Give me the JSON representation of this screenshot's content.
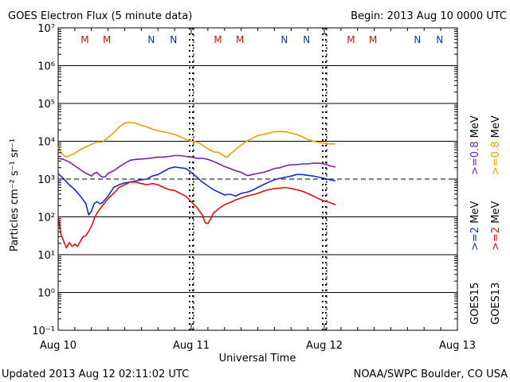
{
  "title": "GOES Electron Flux (5 minute data)",
  "begin": "Begin: 2013 Aug 10 0000 UTC",
  "updated": "Updated 2013 Aug 12 02:11:02 UTC",
  "credit": "NOAA/SWPC Boulder, CO USA",
  "colors": {
    "goes15_08": "#7a1fa8",
    "goes13_08": "#e8a000",
    "goes15_2": "#1030c0",
    "goes13_2": "#e01010",
    "mark_m": "#d01010",
    "mark_n": "#1030c0"
  },
  "chart_data": {
    "type": "line",
    "title": "GOES Electron Flux (5 minute data)",
    "xlabel": "Universal Time",
    "ylabel": "Particles cm⁻² s⁻¹ sr⁻¹",
    "x_unit": "hours since 2013 Aug 10 0000 UTC",
    "xlim": [
      0,
      72
    ],
    "ylim_log10": [
      -1,
      7
    ],
    "y_scale": "log",
    "x_ticks": [
      {
        "x": 0,
        "label": "Aug 10"
      },
      {
        "x": 24,
        "label": "Aug 11"
      },
      {
        "x": 48,
        "label": "Aug 12"
      },
      {
        "x": 72,
        "label": "Aug 13"
      }
    ],
    "y_ticks": [
      {
        "exp": 7,
        "label": "10⁷"
      },
      {
        "exp": 6,
        "label": "10⁶"
      },
      {
        "exp": 5,
        "label": "10⁵"
      },
      {
        "exp": 4,
        "label": "10⁴"
      },
      {
        "exp": 3,
        "label": "10³"
      },
      {
        "exp": 2,
        "label": "10²"
      },
      {
        "exp": 1,
        "label": "10¹"
      },
      {
        "exp": 0,
        "label": "10⁰"
      },
      {
        "exp": -1,
        "label": "10⁻¹"
      }
    ],
    "threshold_exp": 3,
    "midnight_markers_hours": [
      24,
      48
    ],
    "noon_markers_hours": [
      24,
      48
    ],
    "local_time_marks": [
      {
        "label": "M",
        "x": 4.8,
        "color_key": "mark_m"
      },
      {
        "label": "M",
        "x": 8.8,
        "color_key": "mark_m"
      },
      {
        "label": "N",
        "x": 16.8,
        "color_key": "mark_n"
      },
      {
        "label": "N",
        "x": 20.8,
        "color_key": "mark_n"
      },
      {
        "label": "M",
        "x": 28.8,
        "color_key": "mark_m"
      },
      {
        "label": "M",
        "x": 32.8,
        "color_key": "mark_m"
      },
      {
        "label": "N",
        "x": 40.8,
        "color_key": "mark_n"
      },
      {
        "label": "N",
        "x": 44.8,
        "color_key": "mark_n"
      },
      {
        "label": "M",
        "x": 52.8,
        "color_key": "mark_m"
      },
      {
        "label": "M",
        "x": 56.8,
        "color_key": "mark_m"
      },
      {
        "label": "N",
        "x": 64.8,
        "color_key": "mark_n"
      },
      {
        "label": "N",
        "x": 68.8,
        "color_key": "mark_n"
      }
    ],
    "legend": [
      {
        "label": "GOES15",
        "energy": ">=2",
        "unit": "MeV",
        "color_key": "goes15_2",
        "energy_color_key": "goes15_2"
      },
      {
        "label": "GOES13",
        "energy": ">=2",
        "unit": "MeV",
        "color_key": "goes13_2",
        "energy_color_key": "goes13_2"
      },
      {
        "label": "GOES15",
        "energy": ">=0.8",
        "unit": "MeV",
        "color_key": "goes15_08",
        "energy_color_key": "goes15_08"
      },
      {
        "label": "GOES13",
        "energy": ">=0.8",
        "unit": "MeV",
        "color_key": "goes13_08",
        "energy_color_key": "goes13_08"
      }
    ],
    "series": [
      {
        "name": "GOES15 >=0.8 MeV",
        "color_key": "goes15_08",
        "x": [
          0,
          1,
          2,
          3,
          4,
          5,
          5.5,
          6,
          6.5,
          7,
          7.5,
          8,
          8.5,
          9,
          10,
          11,
          12,
          13,
          14,
          15,
          16,
          17,
          18,
          19,
          20,
          21,
          22,
          23,
          24,
          25,
          26,
          27,
          28,
          29,
          30,
          31,
          32,
          33,
          34,
          34.5,
          35,
          36,
          37,
          38,
          39,
          40,
          41,
          42,
          43,
          44,
          45,
          46,
          47,
          48,
          49,
          50
        ],
        "y": [
          3.55,
          3.52,
          3.45,
          3.35,
          3.25,
          3.15,
          3.12,
          3.08,
          3.15,
          3.18,
          3.1,
          3.05,
          3.06,
          3.15,
          3.22,
          3.32,
          3.42,
          3.5,
          3.52,
          3.53,
          3.54,
          3.56,
          3.58,
          3.58,
          3.6,
          3.62,
          3.62,
          3.6,
          3.58,
          3.55,
          3.55,
          3.52,
          3.47,
          3.4,
          3.33,
          3.28,
          3.22,
          3.18,
          3.1,
          3.1,
          3.12,
          3.15,
          3.18,
          3.22,
          3.28,
          3.3,
          3.35,
          3.38,
          3.38,
          3.4,
          3.4,
          3.42,
          3.42,
          3.4,
          3.35,
          3.32
        ]
      },
      {
        "name": "GOES13 >=0.8 MeV",
        "color_key": "goes13_08",
        "x": [
          0,
          0.5,
          1,
          1.5,
          2,
          3,
          4,
          5,
          6,
          7,
          8,
          9,
          10,
          11,
          12,
          13,
          14,
          15,
          16,
          17,
          18,
          19,
          20,
          21,
          22,
          23,
          24,
          25,
          26,
          27,
          28,
          29,
          30,
          30.5,
          31,
          32,
          33,
          34,
          35,
          36,
          37,
          38,
          39,
          40,
          41,
          42,
          43,
          44,
          45,
          46,
          47,
          48,
          49,
          50
        ],
        "y": [
          3.85,
          3.7,
          3.62,
          3.58,
          3.62,
          3.68,
          3.78,
          3.85,
          3.92,
          3.98,
          3.98,
          4.1,
          4.22,
          4.38,
          4.48,
          4.5,
          4.48,
          4.42,
          4.38,
          4.32,
          4.28,
          4.25,
          4.22,
          4.18,
          4.12,
          4.05,
          4.0,
          3.98,
          3.9,
          3.8,
          3.72,
          3.7,
          3.6,
          3.58,
          3.66,
          3.78,
          3.9,
          4.0,
          4.08,
          4.15,
          4.18,
          4.22,
          4.25,
          4.26,
          4.25,
          4.22,
          4.18,
          4.12,
          4.05,
          4.0,
          3.97,
          3.95,
          3.93,
          3.93
        ]
      },
      {
        "name": "GOES15 >=2 MeV",
        "color_key": "goes15_2",
        "x": [
          0,
          1,
          2,
          3,
          4,
          5,
          5.5,
          6,
          6.5,
          7,
          7.5,
          8,
          9,
          10,
          11,
          12,
          13,
          14,
          15,
          16,
          17,
          18,
          19,
          20,
          21,
          22,
          23,
          24,
          25,
          26,
          27,
          28,
          29,
          30,
          31,
          32,
          33,
          34,
          35,
          36,
          37,
          38,
          39,
          40,
          41,
          42,
          43,
          44,
          45,
          46,
          47,
          48,
          49,
          50
        ],
        "y": [
          3.15,
          3.0,
          2.85,
          2.72,
          2.55,
          2.35,
          2.05,
          2.15,
          2.35,
          2.4,
          2.35,
          2.38,
          2.55,
          2.78,
          2.85,
          2.9,
          2.92,
          2.95,
          2.98,
          3.0,
          3.08,
          3.12,
          3.2,
          3.28,
          3.32,
          3.3,
          3.28,
          3.18,
          3.05,
          2.92,
          2.82,
          2.72,
          2.65,
          2.58,
          2.6,
          2.55,
          2.62,
          2.65,
          2.7,
          2.78,
          2.85,
          2.92,
          2.98,
          3.02,
          3.05,
          3.08,
          3.12,
          3.12,
          3.1,
          3.08,
          3.05,
          3.02,
          2.98,
          2.95
        ]
      },
      {
        "name": "GOES13 >=2 MeV",
        "color_key": "goes13_2",
        "x": [
          0,
          0.5,
          1,
          1.5,
          2,
          2.5,
          3,
          3.5,
          4,
          4.5,
          5,
          5.5,
          6,
          6.5,
          7,
          8,
          9,
          10,
          11,
          12,
          13,
          14,
          15,
          16,
          17,
          18,
          19,
          20,
          21,
          22,
          23,
          24,
          25,
          26,
          26.5,
          27,
          27.5,
          28,
          29,
          30,
          31,
          32,
          33,
          34,
          35,
          36,
          37,
          38,
          39,
          40,
          41,
          42,
          43,
          44,
          45,
          46,
          47,
          48,
          49,
          50
        ],
        "y": [
          2.0,
          1.55,
          1.35,
          1.18,
          1.32,
          1.22,
          1.28,
          1.22,
          1.35,
          1.48,
          1.5,
          1.62,
          1.75,
          1.95,
          2.1,
          2.3,
          2.48,
          2.62,
          2.78,
          2.85,
          2.92,
          2.92,
          2.88,
          2.85,
          2.88,
          2.85,
          2.78,
          2.72,
          2.7,
          2.62,
          2.55,
          2.4,
          2.25,
          2.05,
          1.85,
          1.82,
          1.95,
          2.1,
          2.22,
          2.32,
          2.38,
          2.45,
          2.5,
          2.55,
          2.58,
          2.62,
          2.68,
          2.72,
          2.75,
          2.76,
          2.78,
          2.75,
          2.72,
          2.68,
          2.62,
          2.55,
          2.48,
          2.42,
          2.38,
          2.32
        ]
      }
    ]
  }
}
